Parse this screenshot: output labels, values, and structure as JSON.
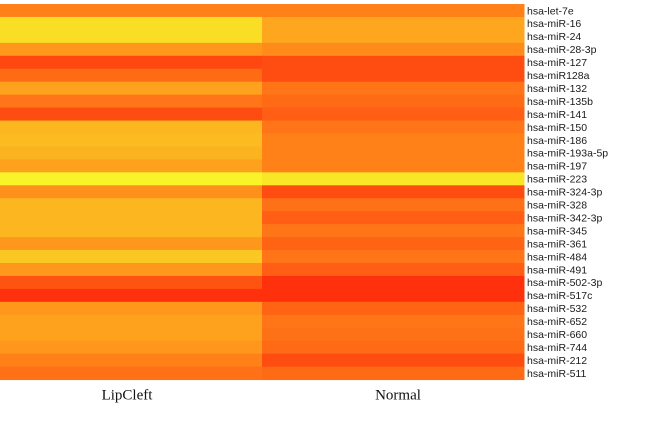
{
  "chart_data": {
    "type": "heatmap",
    "columns": [
      "LipCleft",
      "Normal"
    ],
    "rows": [
      "hsa-let-7e",
      "hsa-miR-16",
      "hsa-miR-24",
      "hsa-miR-28-3p",
      "hsa-miR-127",
      "hsa-miR128a",
      "hsa-miR-132",
      "hsa-miR-135b",
      "hsa-miR-141",
      "hsa-miR-150",
      "hsa-miR-186",
      "hsa-miR-193a-5p",
      "hsa-miR-197",
      "hsa-miR-223",
      "hsa-miR-324-3p",
      "hsa-miR-328",
      "hsa-miR-342-3p",
      "hsa-miR-345",
      "hsa-miR-361",
      "hsa-miR-484",
      "hsa-miR-491",
      "hsa-miR-502-3p",
      "hsa-miR-517c",
      "hsa-miR-532",
      "hsa-miR-652",
      "hsa-miR-660",
      "hsa-miR-744",
      "hsa-miR-212",
      "hsa-miR-511"
    ],
    "values": [
      [
        0.45,
        0.45
      ],
      [
        0.88,
        0.62
      ],
      [
        0.88,
        0.62
      ],
      [
        0.55,
        0.5
      ],
      [
        0.2,
        0.22
      ],
      [
        0.35,
        0.22
      ],
      [
        0.6,
        0.4
      ],
      [
        0.4,
        0.35
      ],
      [
        0.22,
        0.3
      ],
      [
        0.7,
        0.4
      ],
      [
        0.72,
        0.45
      ],
      [
        0.68,
        0.45
      ],
      [
        0.6,
        0.45
      ],
      [
        0.98,
        0.92
      ],
      [
        0.52,
        0.22
      ],
      [
        0.7,
        0.38
      ],
      [
        0.7,
        0.3
      ],
      [
        0.7,
        0.4
      ],
      [
        0.55,
        0.32
      ],
      [
        0.78,
        0.4
      ],
      [
        0.55,
        0.3
      ],
      [
        0.25,
        0.1
      ],
      [
        0.1,
        0.1
      ],
      [
        0.55,
        0.32
      ],
      [
        0.6,
        0.4
      ],
      [
        0.6,
        0.38
      ],
      [
        0.55,
        0.35
      ],
      [
        0.45,
        0.22
      ],
      [
        0.38,
        0.35
      ]
    ],
    "color_scale": {
      "low": "#ff1a0a",
      "mid": "#ff8c1a",
      "high": "#f8f82a"
    }
  }
}
